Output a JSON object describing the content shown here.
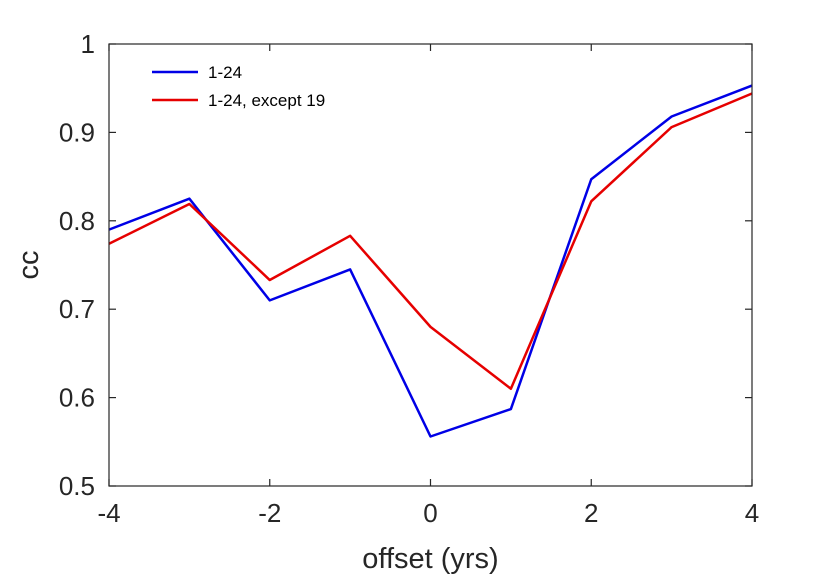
{
  "chart_data": {
    "type": "line",
    "title": "",
    "xlabel": "offset (yrs)",
    "ylabel": "cc",
    "xlim": [
      -4,
      4
    ],
    "ylim": [
      0.5,
      1
    ],
    "x_ticks": [
      -4,
      -2,
      0,
      2,
      4
    ],
    "y_ticks": [
      0.5,
      0.6,
      0.7,
      0.8,
      0.9,
      1
    ],
    "x_tick_labels": [
      "-4",
      "-2",
      "0",
      "2",
      "4"
    ],
    "y_tick_labels": [
      "0.5",
      "0.6",
      "0.7",
      "0.8",
      "0.9",
      "1"
    ],
    "grid": false,
    "legend_position": "top-left",
    "x": [
      -4,
      -3,
      -2,
      -1,
      0,
      1,
      2,
      3,
      4
    ],
    "series": [
      {
        "name": "1-24",
        "color": "#0000e6",
        "values": [
          0.79,
          0.825,
          0.71,
          0.745,
          0.556,
          0.587,
          0.847,
          0.918,
          0.953
        ]
      },
      {
        "name": "1-24, except 19",
        "color": "#e60000",
        "values": [
          0.774,
          0.819,
          0.733,
          0.783,
          0.68,
          0.61,
          0.822,
          0.906,
          0.944
        ]
      }
    ]
  }
}
